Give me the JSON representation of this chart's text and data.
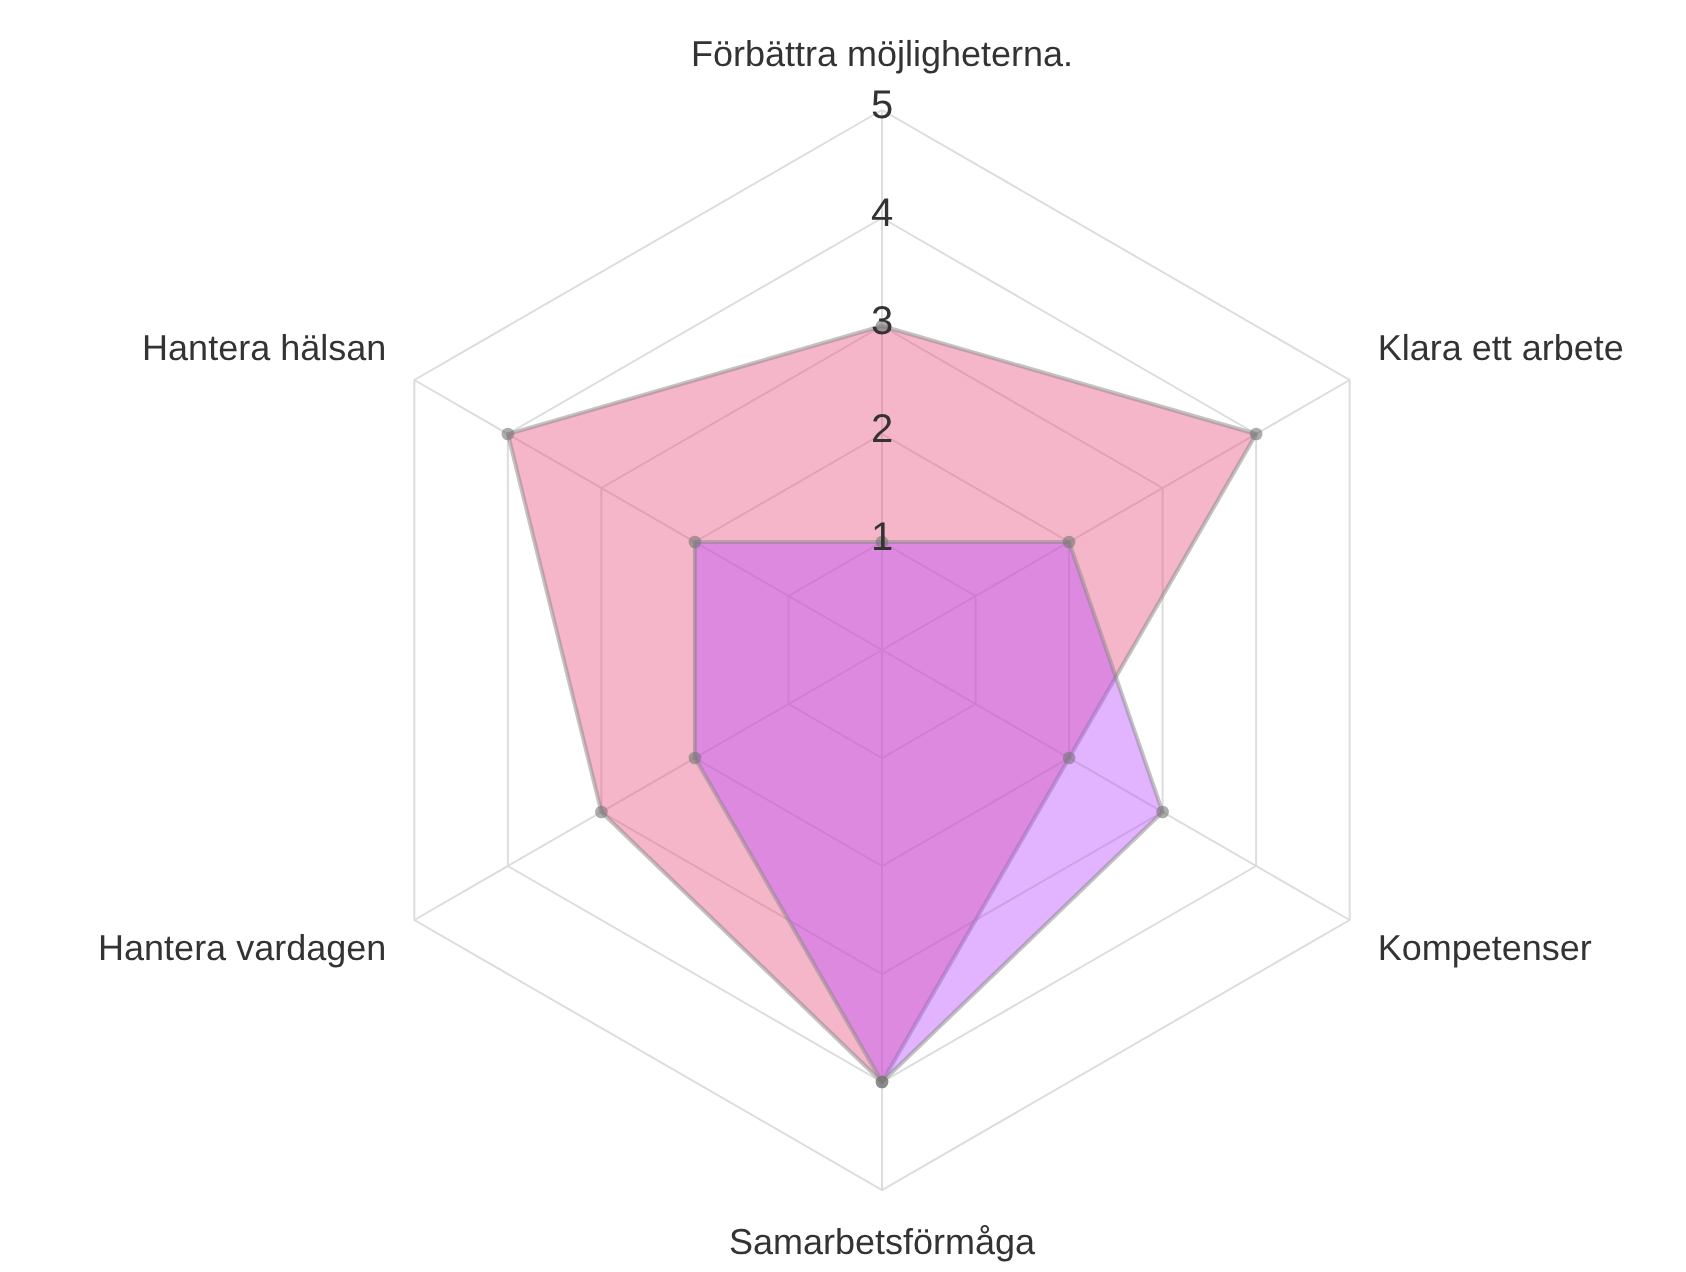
{
  "chart_data": {
    "type": "radar",
    "categories": [
      "Förbättra möjligheterna.",
      "Klara ett arbete",
      "Kompetenser",
      "Samarbetsförmåga",
      "Hantera vardagen",
      "Hantera hälsan"
    ],
    "series": [
      {
        "color": "#e8507e",
        "values": [
          3,
          4,
          2,
          4,
          3,
          4
        ]
      },
      {
        "color": "#b94dff",
        "values": [
          1,
          2,
          3,
          4,
          2,
          2
        ]
      }
    ],
    "ylim": [
      0,
      5
    ],
    "yticks": [
      1,
      2,
      3,
      4,
      5
    ],
    "grid": true,
    "marker": "circle"
  }
}
